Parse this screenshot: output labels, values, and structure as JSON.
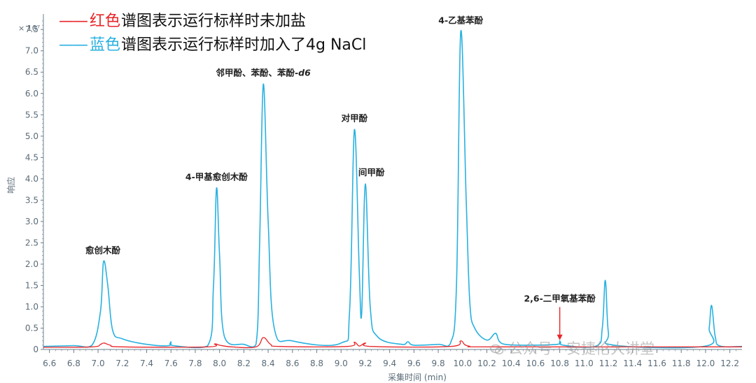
{
  "legend": {
    "red": {
      "dash": "——",
      "color_name": "红色",
      "text": "谱图表示运行标样时未加盐",
      "color": "#e8262a"
    },
    "blue": {
      "dash": "——",
      "color_name": "蓝色",
      "text": "谱图表示运行标样时加入了4g NaCl",
      "color": "#29b1e0"
    }
  },
  "watermark": {
    "text": "公众号 · 安捷伦大讲堂",
    "icon": "wechat-icon"
  },
  "chart_data": {
    "type": "line",
    "xlabel": "采集时间 (min)",
    "ylabel": "响应",
    "y_multiplier": "× 10⁷",
    "xlim": [
      6.55,
      12.3
    ],
    "ylim": [
      0,
      7.7
    ],
    "x_ticks": [
      "6.6",
      "6.8",
      "7.0",
      "7.2",
      "7.4",
      "7.6",
      "7.8",
      "8.0",
      "8.2",
      "8.4",
      "8.6",
      "8.8",
      "9.0",
      "9.2",
      "9.4",
      "9.6",
      "9.8",
      "10.0",
      "10.2",
      "10.4",
      "10.6",
      "10.8",
      "11.0",
      "11.2",
      "11.4",
      "11.6",
      "11.8",
      "12.0",
      "12.2"
    ],
    "y_ticks": [
      "0",
      "0.5",
      "1.0",
      "1.5",
      "2.0",
      "2.5",
      "3.0",
      "3.5",
      "4.0",
      "4.5",
      "5.0",
      "5.5",
      "6.0",
      "6.5",
      "7.0",
      "7.5"
    ],
    "series": [
      {
        "color": "#29b1e0",
        "baseline": 0.06,
        "points": [
          [
            6.55,
            0.07
          ],
          [
            6.8,
            0.09
          ],
          [
            6.95,
            0.1
          ],
          [
            7.02,
            0.9
          ],
          [
            7.045,
            2.06
          ],
          [
            7.08,
            1.5
          ],
          [
            7.12,
            0.45
          ],
          [
            7.2,
            0.25
          ],
          [
            7.4,
            0.12
          ],
          [
            7.58,
            0.09
          ],
          [
            7.6,
            0.18
          ],
          [
            7.62,
            0.09
          ],
          [
            7.9,
            0.08
          ],
          [
            7.95,
            1.5
          ],
          [
            7.975,
            3.78
          ],
          [
            8.0,
            2.2
          ],
          [
            8.04,
            0.3
          ],
          [
            8.2,
            0.12
          ],
          [
            8.3,
            0.12
          ],
          [
            8.33,
            2.5
          ],
          [
            8.36,
            6.22
          ],
          [
            8.4,
            3.0
          ],
          [
            8.45,
            0.5
          ],
          [
            8.6,
            0.2
          ],
          [
            9.0,
            0.15
          ],
          [
            9.07,
            0.9
          ],
          [
            9.11,
            5.15
          ],
          [
            9.15,
            1.8
          ],
          [
            9.17,
            0.85
          ],
          [
            9.2,
            3.88
          ],
          [
            9.24,
            1.0
          ],
          [
            9.3,
            0.3
          ],
          [
            9.5,
            0.12
          ],
          [
            9.55,
            0.18
          ],
          [
            9.6,
            0.1
          ],
          [
            9.8,
            0.12
          ],
          [
            9.9,
            0.14
          ],
          [
            9.95,
            1.5
          ],
          [
            9.985,
            7.45
          ],
          [
            10.03,
            3.5
          ],
          [
            10.06,
            1.1
          ],
          [
            10.1,
            0.5
          ],
          [
            10.2,
            0.22
          ],
          [
            10.27,
            0.38
          ],
          [
            10.3,
            0.2
          ],
          [
            10.35,
            0.12
          ],
          [
            10.5,
            0.1
          ],
          [
            10.78,
            0.12
          ],
          [
            10.8,
            0.2
          ],
          [
            10.83,
            0.1
          ],
          [
            11.1,
            0.08
          ],
          [
            11.15,
            0.5
          ],
          [
            11.175,
            1.62
          ],
          [
            11.2,
            0.4
          ],
          [
            11.25,
            0.1
          ],
          [
            12.0,
            0.08
          ],
          [
            12.03,
            0.5
          ],
          [
            12.05,
            1.03
          ],
          [
            12.08,
            0.3
          ],
          [
            12.12,
            0.08
          ],
          [
            12.3,
            0.07
          ]
        ]
      },
      {
        "color": "#e8262a",
        "baseline": 0.05,
        "points": [
          [
            6.55,
            0.05
          ],
          [
            6.95,
            0.06
          ],
          [
            7.02,
            0.12
          ],
          [
            7.05,
            0.15
          ],
          [
            7.1,
            0.1
          ],
          [
            7.2,
            0.06
          ],
          [
            7.9,
            0.06
          ],
          [
            7.96,
            0.13
          ],
          [
            8.0,
            0.1
          ],
          [
            8.1,
            0.06
          ],
          [
            8.3,
            0.06
          ],
          [
            8.36,
            0.28
          ],
          [
            8.42,
            0.12
          ],
          [
            8.5,
            0.07
          ],
          [
            9.05,
            0.07
          ],
          [
            9.11,
            0.17
          ],
          [
            9.15,
            0.08
          ],
          [
            9.2,
            0.15
          ],
          [
            9.25,
            0.07
          ],
          [
            9.9,
            0.07
          ],
          [
            9.985,
            0.2
          ],
          [
            10.05,
            0.08
          ],
          [
            10.3,
            0.06
          ],
          [
            12.3,
            0.06
          ]
        ]
      }
    ],
    "annotations": [
      {
        "text": "愈创木酚",
        "x": 7.04,
        "y": 2.06
      },
      {
        "text": "4-甲基愈创木酚",
        "x": 7.975,
        "y": 3.78
      },
      {
        "text": "邻甲酚、苯酚、苯酚-",
        "italic": "d6",
        "x": 8.36,
        "y": 6.22
      },
      {
        "text": "对甲酚",
        "x": 9.11,
        "y": 5.15
      },
      {
        "text": "间甲酚",
        "x": 9.25,
        "y": 3.88
      },
      {
        "text": "4-乙基苯酚",
        "x": 9.985,
        "y": 7.45
      },
      {
        "text": "2,6-二甲氧基苯酚",
        "x": 10.8,
        "y": 0.6,
        "arrow": true
      }
    ],
    "grid": false
  }
}
